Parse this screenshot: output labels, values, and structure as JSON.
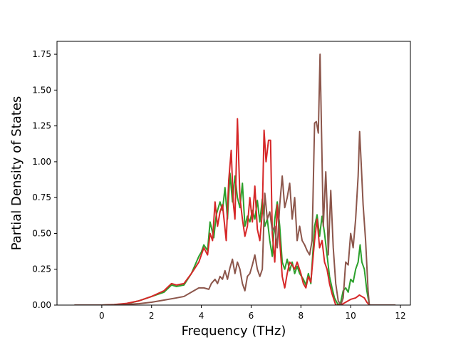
{
  "chart_data": {
    "type": "line",
    "title": "",
    "xlabel": "Frequency (THz)",
    "ylabel": "Partial Density of States",
    "xlim": [
      -1.8,
      12.4
    ],
    "ylim": [
      0,
      1.84
    ],
    "xticks": [
      0,
      2,
      4,
      6,
      8,
      10,
      12
    ],
    "xtick_labels": [
      "0",
      "2",
      "4",
      "6",
      "8",
      "10",
      "12"
    ],
    "yticks": [
      0.0,
      0.25,
      0.5,
      0.75,
      1.0,
      1.25,
      1.5,
      1.75
    ],
    "ytick_labels": [
      "0.00",
      "0.25",
      "0.50",
      "0.75",
      "1.00",
      "1.25",
      "1.50",
      "1.75"
    ],
    "grid": false,
    "legend": "none",
    "series": [
      {
        "color": "#2ca02c",
        "points": [
          [
            -1.1,
            0
          ],
          [
            0,
            0
          ],
          [
            0.5,
            0.003
          ],
          [
            1.0,
            0.01
          ],
          [
            1.5,
            0.03
          ],
          [
            2.0,
            0.06
          ],
          [
            2.5,
            0.09
          ],
          [
            2.8,
            0.14
          ],
          [
            3.0,
            0.13
          ],
          [
            3.3,
            0.14
          ],
          [
            3.6,
            0.22
          ],
          [
            3.9,
            0.34
          ],
          [
            4.0,
            0.37
          ],
          [
            4.1,
            0.42
          ],
          [
            4.25,
            0.38
          ],
          [
            4.35,
            0.58
          ],
          [
            4.5,
            0.47
          ],
          [
            4.6,
            0.63
          ],
          [
            4.75,
            0.72
          ],
          [
            4.85,
            0.66
          ],
          [
            4.95,
            0.82
          ],
          [
            5.05,
            0.6
          ],
          [
            5.15,
            0.92
          ],
          [
            5.25,
            0.72
          ],
          [
            5.35,
            0.9
          ],
          [
            5.45,
            0.75
          ],
          [
            5.55,
            0.68
          ],
          [
            5.65,
            0.85
          ],
          [
            5.75,
            0.55
          ],
          [
            5.85,
            0.62
          ],
          [
            5.95,
            0.58
          ],
          [
            6.05,
            0.66
          ],
          [
            6.15,
            0.6
          ],
          [
            6.25,
            0.73
          ],
          [
            6.35,
            0.58
          ],
          [
            6.45,
            0.74
          ],
          [
            6.55,
            0.55
          ],
          [
            6.65,
            0.6
          ],
          [
            6.75,
            0.45
          ],
          [
            6.85,
            0.34
          ],
          [
            6.95,
            0.6
          ],
          [
            7.05,
            0.72
          ],
          [
            7.15,
            0.55
          ],
          [
            7.25,
            0.3
          ],
          [
            7.35,
            0.25
          ],
          [
            7.45,
            0.32
          ],
          [
            7.55,
            0.24
          ],
          [
            7.65,
            0.3
          ],
          [
            7.75,
            0.22
          ],
          [
            7.85,
            0.27
          ],
          [
            7.95,
            0.22
          ],
          [
            8.1,
            0.18
          ],
          [
            8.2,
            0.14
          ],
          [
            8.3,
            0.22
          ],
          [
            8.4,
            0.15
          ],
          [
            8.55,
            0.55
          ],
          [
            8.65,
            0.63
          ],
          [
            8.75,
            0.48
          ],
          [
            8.85,
            0.62
          ],
          [
            8.95,
            0.5
          ],
          [
            9.05,
            0.35
          ],
          [
            9.15,
            0.2
          ],
          [
            9.25,
            0.12
          ],
          [
            9.35,
            0.05
          ],
          [
            9.5,
            0
          ],
          [
            9.6,
            0.02
          ],
          [
            9.7,
            0.1
          ],
          [
            9.8,
            0.12
          ],
          [
            9.9,
            0.09
          ],
          [
            10.0,
            0.18
          ],
          [
            10.1,
            0.16
          ],
          [
            10.2,
            0.25
          ],
          [
            10.3,
            0.3
          ],
          [
            10.38,
            0.42
          ],
          [
            10.45,
            0.3
          ],
          [
            10.55,
            0.25
          ],
          [
            10.65,
            0.1
          ],
          [
            10.75,
            0
          ],
          [
            11.8,
            0
          ]
        ]
      },
      {
        "color": "#d62728",
        "points": [
          [
            -1.1,
            0
          ],
          [
            0,
            0
          ],
          [
            0.5,
            0.004
          ],
          [
            1.0,
            0.012
          ],
          [
            1.5,
            0.03
          ],
          [
            2.0,
            0.06
          ],
          [
            2.5,
            0.1
          ],
          [
            2.8,
            0.15
          ],
          [
            3.0,
            0.14
          ],
          [
            3.3,
            0.15
          ],
          [
            3.6,
            0.22
          ],
          [
            3.9,
            0.3
          ],
          [
            4.1,
            0.4
          ],
          [
            4.25,
            0.35
          ],
          [
            4.35,
            0.5
          ],
          [
            4.45,
            0.45
          ],
          [
            4.55,
            0.72
          ],
          [
            4.65,
            0.55
          ],
          [
            4.75,
            0.65
          ],
          [
            4.85,
            0.7
          ],
          [
            5.0,
            0.45
          ],
          [
            5.1,
            0.87
          ],
          [
            5.2,
            1.08
          ],
          [
            5.28,
            0.72
          ],
          [
            5.35,
            0.6
          ],
          [
            5.45,
            1.3
          ],
          [
            5.55,
            0.75
          ],
          [
            5.65,
            0.6
          ],
          [
            5.75,
            0.48
          ],
          [
            5.85,
            0.55
          ],
          [
            5.95,
            0.75
          ],
          [
            6.05,
            0.58
          ],
          [
            6.15,
            0.83
          ],
          [
            6.25,
            0.53
          ],
          [
            6.35,
            0.45
          ],
          [
            6.45,
            0.65
          ],
          [
            6.52,
            1.22
          ],
          [
            6.6,
            1.0
          ],
          [
            6.7,
            1.15
          ],
          [
            6.78,
            1.15
          ],
          [
            6.85,
            0.5
          ],
          [
            6.95,
            0.3
          ],
          [
            7.05,
            0.7
          ],
          [
            7.15,
            0.45
          ],
          [
            7.25,
            0.2
          ],
          [
            7.35,
            0.12
          ],
          [
            7.45,
            0.22
          ],
          [
            7.55,
            0.3
          ],
          [
            7.65,
            0.28
          ],
          [
            7.75,
            0.25
          ],
          [
            7.85,
            0.3
          ],
          [
            8.0,
            0.22
          ],
          [
            8.1,
            0.15
          ],
          [
            8.2,
            0.12
          ],
          [
            8.3,
            0.2
          ],
          [
            8.4,
            0.16
          ],
          [
            8.55,
            0.45
          ],
          [
            8.65,
            0.6
          ],
          [
            8.75,
            0.4
          ],
          [
            8.85,
            0.45
          ],
          [
            8.95,
            0.3
          ],
          [
            9.05,
            0.25
          ],
          [
            9.15,
            0.15
          ],
          [
            9.25,
            0.08
          ],
          [
            9.4,
            0
          ],
          [
            9.6,
            0
          ],
          [
            9.8,
            0.02
          ],
          [
            10.0,
            0.04
          ],
          [
            10.2,
            0.05
          ],
          [
            10.35,
            0.07
          ],
          [
            10.45,
            0.06
          ],
          [
            10.55,
            0.05
          ],
          [
            10.65,
            0.02
          ],
          [
            10.75,
            0
          ],
          [
            11.8,
            0
          ]
        ]
      },
      {
        "color": "#8c564b",
        "points": [
          [
            -1.1,
            0
          ],
          [
            0,
            0
          ],
          [
            0.5,
            0.002
          ],
          [
            1.0,
            0.005
          ],
          [
            1.5,
            0.01
          ],
          [
            2.0,
            0.02
          ],
          [
            2.5,
            0.035
          ],
          [
            3.0,
            0.05
          ],
          [
            3.3,
            0.06
          ],
          [
            3.6,
            0.09
          ],
          [
            3.9,
            0.12
          ],
          [
            4.1,
            0.12
          ],
          [
            4.3,
            0.11
          ],
          [
            4.4,
            0.15
          ],
          [
            4.55,
            0.18
          ],
          [
            4.65,
            0.15
          ],
          [
            4.75,
            0.2
          ],
          [
            4.85,
            0.18
          ],
          [
            4.95,
            0.24
          ],
          [
            5.05,
            0.18
          ],
          [
            5.15,
            0.26
          ],
          [
            5.25,
            0.32
          ],
          [
            5.35,
            0.22
          ],
          [
            5.45,
            0.3
          ],
          [
            5.55,
            0.25
          ],
          [
            5.65,
            0.15
          ],
          [
            5.75,
            0.1
          ],
          [
            5.85,
            0.2
          ],
          [
            5.95,
            0.22
          ],
          [
            6.05,
            0.28
          ],
          [
            6.15,
            0.35
          ],
          [
            6.25,
            0.25
          ],
          [
            6.35,
            0.2
          ],
          [
            6.45,
            0.25
          ],
          [
            6.55,
            0.78
          ],
          [
            6.65,
            0.6
          ],
          [
            6.75,
            0.65
          ],
          [
            6.85,
            0.52
          ],
          [
            6.95,
            0.55
          ],
          [
            7.05,
            0.4
          ],
          [
            7.15,
            0.7
          ],
          [
            7.25,
            0.9
          ],
          [
            7.35,
            0.68
          ],
          [
            7.45,
            0.75
          ],
          [
            7.55,
            0.85
          ],
          [
            7.65,
            0.6
          ],
          [
            7.75,
            0.75
          ],
          [
            7.85,
            0.45
          ],
          [
            7.95,
            0.55
          ],
          [
            8.05,
            0.45
          ],
          [
            8.15,
            0.42
          ],
          [
            8.25,
            0.38
          ],
          [
            8.35,
            0.35
          ],
          [
            8.45,
            0.45
          ],
          [
            8.55,
            1.27
          ],
          [
            8.62,
            1.28
          ],
          [
            8.7,
            1.2
          ],
          [
            8.77,
            1.75
          ],
          [
            8.83,
            1.2
          ],
          [
            8.9,
            0.55
          ],
          [
            9.0,
            0.93
          ],
          [
            9.05,
            0.7
          ],
          [
            9.1,
            0.35
          ],
          [
            9.2,
            0.8
          ],
          [
            9.3,
            0.4
          ],
          [
            9.4,
            0.15
          ],
          [
            9.5,
            0.03
          ],
          [
            9.6,
            0
          ],
          [
            9.7,
            0.05
          ],
          [
            9.8,
            0.3
          ],
          [
            9.9,
            0.28
          ],
          [
            10.0,
            0.5
          ],
          [
            10.1,
            0.4
          ],
          [
            10.2,
            0.6
          ],
          [
            10.3,
            0.9
          ],
          [
            10.36,
            1.21
          ],
          [
            10.42,
            1.0
          ],
          [
            10.5,
            0.7
          ],
          [
            10.6,
            0.45
          ],
          [
            10.7,
            0.1
          ],
          [
            10.75,
            0
          ],
          [
            11.8,
            0
          ]
        ]
      }
    ]
  }
}
